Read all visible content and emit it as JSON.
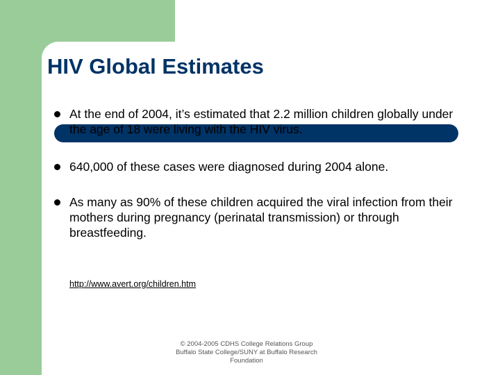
{
  "slide": {
    "title": "HIV Global Estimates",
    "bullets": [
      {
        "text": "At the end of 2004, it’s estimated that 2.2 million children globally under the age of 18 were living with the HIV virus."
      },
      {
        "text": "640,000 of these cases were diagnosed during 2004 alone."
      },
      {
        "text": "As many as 90% of these children acquired the viral infection from their mothers during pregnancy (perinatal transmission) or through breastfeeding."
      }
    ],
    "source_link": "http://www.avert.org/children.htm",
    "footer": {
      "line1": "© 2004-2005 CDHS College Relations Group",
      "line2": "Buffalo State College/SUNY at Buffalo Research",
      "line3": "Foundation"
    }
  },
  "colors": {
    "accent_green": "#99cc99",
    "title_navy": "#003366"
  }
}
